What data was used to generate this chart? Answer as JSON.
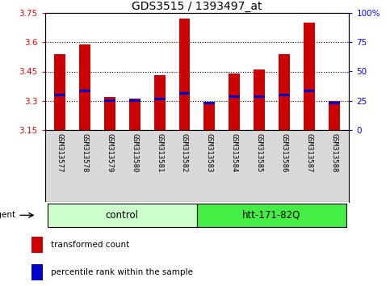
{
  "title": "GDS3515 / 1393497_at",
  "samples": [
    "GSM313577",
    "GSM313578",
    "GSM313579",
    "GSM313580",
    "GSM313581",
    "GSM313582",
    "GSM313583",
    "GSM313584",
    "GSM313585",
    "GSM313586",
    "GSM313587",
    "GSM313588"
  ],
  "bar_bottoms": [
    3.15,
    3.15,
    3.15,
    3.15,
    3.15,
    3.15,
    3.15,
    3.15,
    3.15,
    3.15,
    3.15,
    3.15
  ],
  "bar_tops": [
    3.54,
    3.59,
    3.32,
    3.31,
    3.43,
    3.72,
    3.29,
    3.44,
    3.46,
    3.54,
    3.7,
    3.3
  ],
  "blue_positions": [
    3.33,
    3.35,
    3.3,
    3.3,
    3.31,
    3.34,
    3.29,
    3.32,
    3.32,
    3.33,
    3.35,
    3.29
  ],
  "bar_color": "#cc0000",
  "blue_color": "#0000cc",
  "ylim_left": [
    3.15,
    3.75
  ],
  "ylim_right": [
    0,
    100
  ],
  "yticks_left": [
    3.15,
    3.3,
    3.45,
    3.6,
    3.75
  ],
  "yticks_right": [
    0,
    25,
    50,
    75,
    100
  ],
  "ytick_labels_right": [
    "0",
    "25",
    "50",
    "75",
    "100%"
  ],
  "grid_values": [
    3.3,
    3.45,
    3.6
  ],
  "group1_label": "control",
  "group2_label": "htt-171-82Q",
  "group1_indices": [
    0,
    1,
    2,
    3,
    4,
    5
  ],
  "group2_indices": [
    6,
    7,
    8,
    9,
    10,
    11
  ],
  "agent_label": "agent",
  "legend_red_label": "transformed count",
  "legend_blue_label": "percentile rank within the sample",
  "bg_color": "#d8d8d8",
  "group1_bg": "#ccffcc",
  "group2_bg": "#44ee44",
  "plot_bg": "#ffffff",
  "title_fontsize": 10,
  "tick_fontsize": 7.5,
  "group_label_fontsize": 8.5
}
